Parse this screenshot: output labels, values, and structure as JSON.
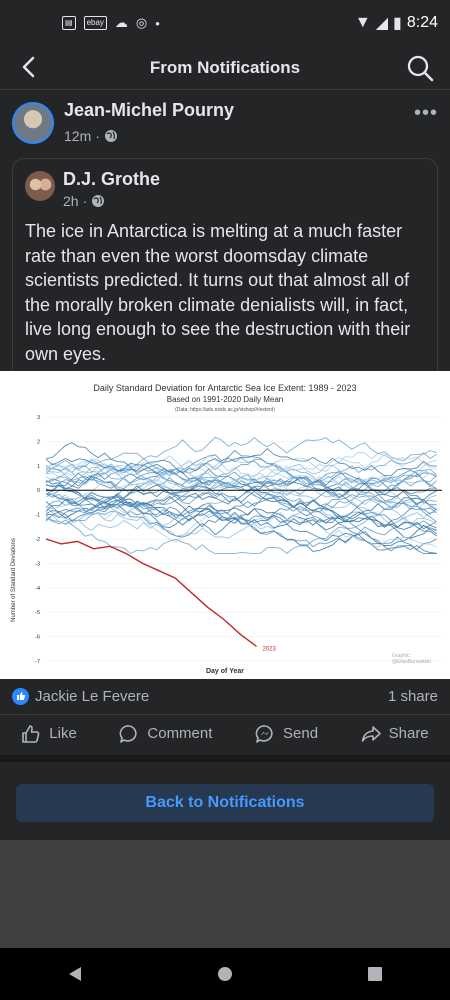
{
  "status_bar": {
    "time": "8:24",
    "notif_icons": [
      "mail-box-icon",
      "ebay-icon",
      "cloud-icon",
      "chrome-icon",
      "dot-icon"
    ],
    "ebay_label": "ebay"
  },
  "header": {
    "title": "From Notifications"
  },
  "post": {
    "author": "Jean-Michel Pourny",
    "time": "12m",
    "shared": {
      "author": "D.J. Grothe",
      "time": "2h",
      "text": "The ice in Antarctica is melting at a much faster rate than even the worst doomsday climate scientists predicted. It turns out that almost all of the morally broken climate denialists will, in fact, live long enough to see the destruction with their own eyes."
    },
    "reactor": "Jackie Le Fevere",
    "shares": "1 share",
    "actions": {
      "like": "Like",
      "comment": "Comment",
      "send": "Send",
      "share": "Share"
    }
  },
  "chart_data": {
    "type": "line",
    "title": "Daily Standard Deviation for Antarctic Sea Ice Extent: 1989 - 2023",
    "subtitle": "Based on 1991-2020 Daily Mean",
    "note": "(Data: https://ads.nsidc.ac.jp/vishop/#/extent)",
    "xlabel": "Day of Year",
    "ylabel": "Number of Standard Deviations",
    "credit": "Graphic: @EliasBorowitzki",
    "ylim": [
      -7,
      3
    ],
    "yticks": [
      "3",
      "2",
      "1",
      "0",
      "-1",
      "-2",
      "-3",
      "-4",
      "-5",
      "-6",
      "-7"
    ],
    "highlight_series": {
      "name": "2023",
      "color": "#c0282b",
      "x": [
        1,
        15,
        30,
        45,
        60,
        75,
        90,
        105,
        120,
        135,
        150,
        165,
        180,
        195
      ],
      "y": [
        -2.0,
        -2.2,
        -2.1,
        -2.4,
        -2.3,
        -2.6,
        -3.0,
        -3.3,
        -3.6,
        -4.2,
        -4.8,
        -5.3,
        -5.9,
        -6.4
      ]
    },
    "background_series_color": "#4a86b8",
    "zero_line_color": "#000000"
  },
  "back_button": {
    "label": "Back to Notifications"
  }
}
